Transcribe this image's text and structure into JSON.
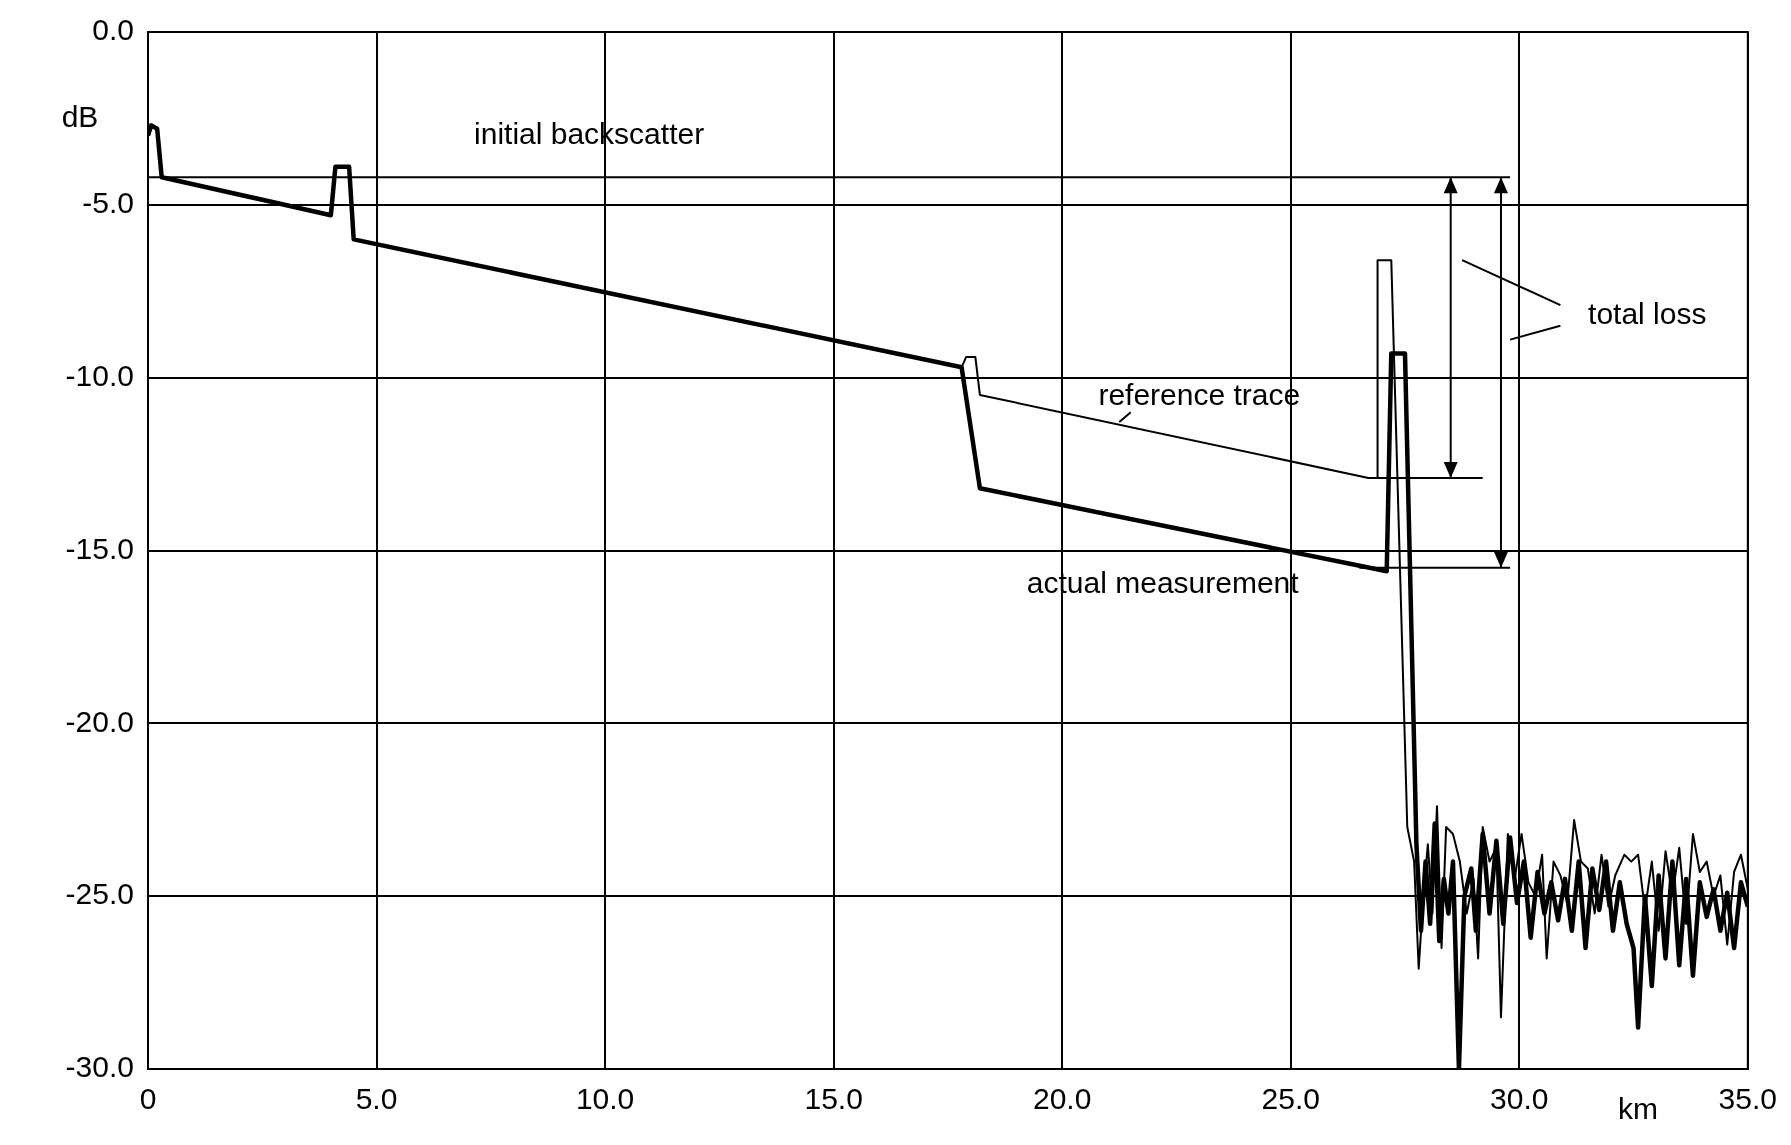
{
  "chart_data": {
    "type": "line",
    "xlabel": "km",
    "ylabel": "dB",
    "xlim": [
      0,
      35
    ],
    "ylim": [
      -30,
      0
    ],
    "xticks": [
      {
        "value": 0,
        "label": "0"
      },
      {
        "value": 5,
        "label": "5.0"
      },
      {
        "value": 10,
        "label": "10.0"
      },
      {
        "value": 15,
        "label": "15.0"
      },
      {
        "value": 20,
        "label": "20.0"
      },
      {
        "value": 25,
        "label": "25.0"
      },
      {
        "value": 30,
        "label": "30.0"
      },
      {
        "value": 35,
        "label": "35.0"
      }
    ],
    "yticks": [
      {
        "value": 0,
        "label": "0.0"
      },
      {
        "value": -5,
        "label": "-5.0"
      },
      {
        "value": -10,
        "label": "-10.0"
      },
      {
        "value": -15,
        "label": "-15.0"
      },
      {
        "value": -20,
        "label": "-20.0"
      },
      {
        "value": -25,
        "label": "-25.0"
      },
      {
        "value": -30,
        "label": "-30.0"
      }
    ],
    "grid": true,
    "legend": false,
    "marker": "none",
    "line_style": "solid",
    "ref_lines": [
      {
        "axis": "y",
        "value": -4.2,
        "label": "initial backscatter",
        "color": "#000000"
      }
    ],
    "annotations": [
      "total loss"
    ],
    "series": [
      {
        "name": "reference trace",
        "color": "#000000",
        "x": [
          0,
          0.07,
          0.2,
          0.3,
          4.0,
          4.1,
          4.4,
          4.5,
          17.8,
          17.9,
          18.1,
          18.2,
          26.7,
          26.9,
          26.9,
          27.2,
          27.55,
          27.7,
          27.8,
          27.9,
          28.0,
          28.1,
          28.2,
          28.3,
          28.4,
          28.55,
          28.7,
          28.85,
          29.0,
          29.1,
          29.2,
          29.35,
          29.5,
          29.6,
          29.75,
          29.9,
          30.05,
          30.2,
          30.35,
          30.5,
          30.6,
          30.75,
          30.9,
          31.05,
          31.2,
          31.35,
          31.5,
          31.65,
          31.8,
          31.95,
          32.1,
          32.3,
          32.45,
          32.6,
          32.75,
          32.9,
          33.05,
          33.2,
          33.35,
          33.5,
          33.65,
          33.8,
          33.95,
          34.1,
          34.25,
          34.4,
          34.55,
          34.7,
          34.85,
          35.0
        ],
        "values": [
          -3.0,
          -2.7,
          -2.8,
          -4.2,
          -5.3,
          -3.9,
          -3.9,
          -6.0,
          -9.7,
          -9.4,
          -9.4,
          -10.5,
          -12.9,
          -12.9,
          -6.6,
          -6.6,
          -23.0,
          -24.0,
          -27.1,
          -25.0,
          -23.5,
          -25.5,
          -22.4,
          -26.5,
          -23.0,
          -23.2,
          -24.0,
          -25.5,
          -24.5,
          -26.8,
          -23.0,
          -24.0,
          -23.6,
          -28.5,
          -23.2,
          -24.5,
          -23.2,
          -24.6,
          -25.0,
          -23.8,
          -26.8,
          -24.0,
          -24.4,
          -25.2,
          -22.8,
          -24.0,
          -24.2,
          -25.5,
          -23.8,
          -25.3,
          -24.4,
          -23.8,
          -24.0,
          -23.8,
          -25.4,
          -24.0,
          -26.0,
          -23.7,
          -25.0,
          -23.6,
          -25.8,
          -23.2,
          -24.3,
          -24.0,
          -25.0,
          -24.4,
          -26.4,
          -24.3,
          -23.8,
          -24.8
        ]
      },
      {
        "name": "actual measurement",
        "color": "#000000",
        "x": [
          0,
          0.07,
          0.2,
          0.3,
          4.0,
          4.1,
          4.4,
          4.5,
          17.8,
          18.2,
          27.1,
          27.2,
          27.5,
          27.75,
          27.85,
          27.95,
          28.05,
          28.15,
          28.25,
          28.35,
          28.45,
          28.55,
          28.68,
          28.8,
          28.95,
          29.05,
          29.2,
          29.35,
          29.5,
          29.65,
          29.8,
          29.95,
          30.1,
          30.25,
          30.4,
          30.55,
          30.7,
          30.85,
          31.0,
          31.15,
          31.3,
          31.45,
          31.6,
          31.75,
          31.9,
          32.05,
          32.2,
          32.35,
          32.5,
          32.6,
          32.75,
          32.9,
          33.05,
          33.2,
          33.35,
          33.5,
          33.65,
          33.8,
          33.95,
          34.1,
          34.25,
          34.4,
          34.55,
          34.7,
          34.85,
          35.0
        ],
        "values": [
          -3.0,
          -2.7,
          -2.8,
          -4.2,
          -5.3,
          -3.9,
          -3.9,
          -6.0,
          -9.7,
          -13.2,
          -15.6,
          -9.3,
          -9.3,
          -23.5,
          -26.0,
          -24.0,
          -25.8,
          -22.9,
          -26.3,
          -24.5,
          -25.5,
          -24.0,
          -30.0,
          -25.0,
          -24.2,
          -26.0,
          -23.2,
          -25.5,
          -23.4,
          -25.8,
          -23.3,
          -25.2,
          -24.0,
          -26.2,
          -24.3,
          -25.5,
          -24.6,
          -25.7,
          -24.5,
          -26.0,
          -24.0,
          -26.5,
          -24.2,
          -25.4,
          -24.0,
          -26.0,
          -24.6,
          -25.8,
          -26.5,
          -28.8,
          -25.0,
          -27.6,
          -24.4,
          -26.8,
          -24.0,
          -27.0,
          -24.5,
          -27.3,
          -24.6,
          -25.6,
          -24.8,
          -26.0,
          -24.9,
          -26.5,
          -24.6,
          -25.3
        ]
      }
    ]
  }
}
